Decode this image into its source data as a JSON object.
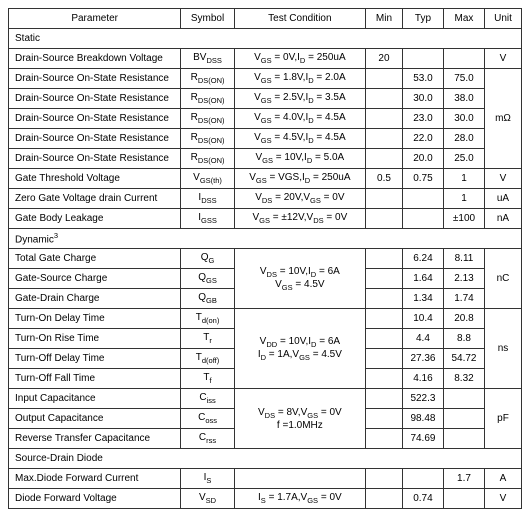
{
  "headers": {
    "parameter": "Parameter",
    "symbol": "Symbol",
    "condition": "Test Condition",
    "min": "Min",
    "typ": "Typ",
    "max": "Max",
    "unit": "Unit"
  },
  "sections": {
    "static": "Static",
    "dynamic": "Dynamic",
    "dynamic_sup": "3",
    "sdd": "Source-Drain Diode"
  },
  "static": {
    "r0": {
      "param": "Drain-Source Breakdown Voltage",
      "sym_pre": "BV",
      "sym_sub": "DSS",
      "cond": "V",
      "cond_sub1": "GS",
      "cond_mid": " = 0V,I",
      "cond_sub2": "D",
      "cond_end": " = 250uA",
      "min": "20",
      "typ": "",
      "max": "",
      "unit": "V"
    },
    "r1": {
      "param": "Drain-Source On-State Resistance",
      "sym_pre": "R",
      "sym_sub": "DS(ON)",
      "cond": "V",
      "cond_sub1": "GS",
      "cond_mid": " = 1.8V,I",
      "cond_sub2": "D",
      "cond_end": " = 2.0A",
      "min": "",
      "typ": "53.0",
      "max": "75.0"
    },
    "r2": {
      "param": "Drain-Source On-State Resistance",
      "sym_pre": "R",
      "sym_sub": "DS(ON)",
      "cond": "V",
      "cond_sub1": "GS",
      "cond_mid": " = 2.5V,I",
      "cond_sub2": "D",
      "cond_end": " = 3.5A",
      "min": "",
      "typ": "30.0",
      "max": "38.0"
    },
    "r3": {
      "param": "Drain-Source On-State Resistance",
      "sym_pre": "R",
      "sym_sub": "DS(ON)",
      "cond": "V",
      "cond_sub1": "GS",
      "cond_mid": " = 4.0V,I",
      "cond_sub2": "D",
      "cond_end": " = 4.5A",
      "min": "",
      "typ": "23.0",
      "max": "30.0",
      "unit": "mΩ"
    },
    "r4": {
      "param": "Drain-Source On-State Resistance",
      "sym_pre": "R",
      "sym_sub": "DS(ON)",
      "cond": "V",
      "cond_sub1": "GS",
      "cond_mid": " = 4.5V,I",
      "cond_sub2": "D",
      "cond_end": " = 4.5A",
      "min": "",
      "typ": "22.0",
      "max": "28.0"
    },
    "r5": {
      "param": "Drain-Source On-State Resistance",
      "sym_pre": "R",
      "sym_sub": "DS(ON)",
      "cond": "V",
      "cond_sub1": "GS",
      "cond_mid": " = 10V,I",
      "cond_sub2": "D",
      "cond_end": " = 5.0A",
      "min": "",
      "typ": "20.0",
      "max": "25.0"
    },
    "r6": {
      "param": "Gate Threshold Voltage",
      "sym_pre": "V",
      "sym_sub": "GS(th)",
      "cond": "V",
      "cond_sub1": "GS",
      "cond_mid": " = VGS,I",
      "cond_sub2": "D",
      "cond_end": " = 250uA",
      "min": "0.5",
      "typ": "0.75",
      "max": "1",
      "unit": "V"
    },
    "r7": {
      "param": "Zero Gate Voltage drain Current",
      "sym_pre": "I",
      "sym_sub": "DSS",
      "cond": "V",
      "cond_sub1": "DS",
      "cond_mid": " = 20V,V",
      "cond_sub2": "GS",
      "cond_end": " = 0V",
      "min": "",
      "typ": "",
      "max": "1",
      "unit": "uA"
    },
    "r8": {
      "param": "Gate Body Leakage",
      "sym_pre": "I",
      "sym_sub": "GSS",
      "cond": "V",
      "cond_sub1": "GS",
      "cond_mid": " = ±12V,V",
      "cond_sub2": "DS",
      "cond_end": " = 0V",
      "min": "",
      "typ": "",
      "max": "±100",
      "unit": "nA"
    }
  },
  "dynamic": {
    "r0": {
      "param": "Total Gate Charge",
      "sym_pre": "Q",
      "sym_sub": "G",
      "typ": "6.24",
      "max": "8.11"
    },
    "r1": {
      "param": "Gate-Source Charge",
      "sym_pre": "Q",
      "sym_sub": "GS",
      "typ": "1.64",
      "max": "2.13"
    },
    "r2": {
      "param": "Gate-Drain Charge",
      "sym_pre": "Q",
      "sym_sub": "GB",
      "typ": "1.34",
      "max": "1.74"
    },
    "r3": {
      "param": "Turn-On Delay Time",
      "sym_pre": "T",
      "sym_sub": "d(on)",
      "typ": "10.4",
      "max": "20.8"
    },
    "r4": {
      "param": "Turn-On Rise Time",
      "sym_pre": "T",
      "sym_sub": "r",
      "typ": "4.4",
      "max": "8.8"
    },
    "r5": {
      "param": "Turn-Off   Delay Time",
      "sym_pre": "T",
      "sym_sub": "d(off)",
      "typ": "27.36",
      "max": "54.72"
    },
    "r6": {
      "param": "Turn-Off Fall Time",
      "sym_pre": "T",
      "sym_sub": "f",
      "typ": "4.16",
      "max": "8.32"
    },
    "r7": {
      "param": "Input Capacitance",
      "sym_pre": "C",
      "sym_sub": "iss",
      "typ": "522.3",
      "max": ""
    },
    "r8": {
      "param": "Output Capacitance",
      "sym_pre": "C",
      "sym_sub": "oss",
      "typ": "98.48",
      "max": ""
    },
    "r9": {
      "param": "Reverse Transfer Capacitance",
      "sym_pre": "C",
      "sym_sub": "rss",
      "typ": "74.69",
      "max": ""
    },
    "cond_group1_l1": "V",
    "cond_group1_sub1": "DS",
    "cond_group1_mid1": " = 10V,I",
    "cond_group1_sub2": "D",
    "cond_group1_end1": " = 6A",
    "cond_group1_l2_pre": "V",
    "cond_group1_l2_sub": "GS",
    "cond_group1_l2_end": " = 4.5V",
    "cond_group2_l1_pre": "V",
    "cond_group2_l1_sub1": "DD",
    "cond_group2_l1_mid": " = 10V,I",
    "cond_group2_l1_sub2": "D",
    "cond_group2_l1_end": " = 6A",
    "cond_group2_l2_pre": "I",
    "cond_group2_l2_sub1": "D",
    "cond_group2_l2_mid": " = 1A,V",
    "cond_group2_l2_sub2": "GS",
    "cond_group2_l2_end": " = 4.5V",
    "cond_group3_l1_pre": "V",
    "cond_group3_l1_sub1": "DS",
    "cond_group3_l1_mid": " = 8V,V",
    "cond_group3_l1_sub2": "GS",
    "cond_group3_l1_end": " = 0V",
    "cond_group3_l2": "f =1.0MHz",
    "unit_nc": "nC",
    "unit_ns": "ns",
    "unit_pf": "pF"
  },
  "sdd": {
    "r0": {
      "param": "Max.Diode Forward Current",
      "sym_pre": "I",
      "sym_sub": "S",
      "cond": "",
      "typ": "",
      "max": "1.7",
      "unit": "A"
    },
    "r1": {
      "param": "Diode Forward Voltage",
      "sym_pre": "V",
      "sym_sub": "SD",
      "cond_pre": "I",
      "cond_sub1": "S",
      "cond_mid": " = 1.7A,V",
      "cond_sub2": "GS",
      "cond_end": " = 0V",
      "typ": "0.74",
      "max": "",
      "unit": "V"
    }
  },
  "colors": {
    "border": "#333333",
    "background": "#ffffff",
    "text": "#333333"
  }
}
